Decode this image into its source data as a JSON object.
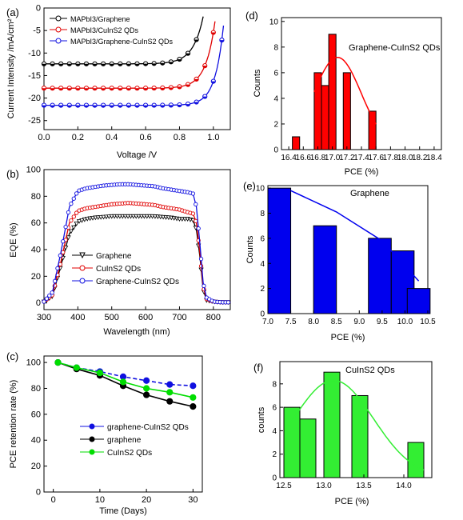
{
  "chart_data": [
    {
      "panel": "(a)",
      "type": "line",
      "xlabel": "Voltage /V",
      "ylabel": "Current Intensity /mA/cm²",
      "xlim": [
        0,
        1.1
      ],
      "ylim": [
        -27,
        0
      ],
      "xticks": [
        "0.0",
        "0.2",
        "0.4",
        "0.6",
        "0.8",
        "1.0"
      ],
      "yticks": [
        "0",
        "-5",
        "-10",
        "-15",
        "-20",
        "-25"
      ],
      "legend_position": "top-left",
      "series": [
        {
          "name": "MAPbI3/Graphene",
          "color": "#000000",
          "marker": "half-circle",
          "jsc": -12.4,
          "voc": 0.95,
          "n": 0.06
        },
        {
          "name": "MAPbI3/CuInS2 QDs",
          "color": "#e00000",
          "marker": "half-circle",
          "jsc": -17.8,
          "voc": 1.02,
          "n": 0.055
        },
        {
          "name": "MAPbI3/Graphene-CuInS2 QDs",
          "color": "#1010e0",
          "marker": "half-circle",
          "jsc": -21.6,
          "voc": 1.07,
          "n": 0.05
        }
      ]
    },
    {
      "panel": "(b)",
      "type": "line",
      "xlabel": "Wavelength (nm)",
      "ylabel": "EQE (%)",
      "xlim": [
        300,
        850
      ],
      "ylim": [
        -5,
        100
      ],
      "xticks": [
        "300",
        "400",
        "500",
        "600",
        "700",
        "800"
      ],
      "yticks": [
        "0",
        "20",
        "40",
        "60",
        "80",
        "100"
      ],
      "legend_position": "bottom-left",
      "x": [
        300,
        325,
        350,
        375,
        400,
        425,
        450,
        475,
        500,
        525,
        550,
        575,
        600,
        625,
        650,
        675,
        700,
        725,
        740,
        750,
        760,
        770,
        780,
        800,
        825,
        850
      ],
      "series": [
        {
          "name": "Graphene",
          "color": "#000000",
          "marker": "triangle-down",
          "values": [
            1,
            5,
            28,
            52,
            61,
            63,
            64,
            64.5,
            65,
            65,
            65,
            65,
            65,
            65,
            64.5,
            64,
            63,
            63,
            62,
            55,
            35,
            10,
            2,
            1,
            0.5,
            0.5
          ]
        },
        {
          "name": "CuInS2 QDs",
          "color": "#e00000",
          "marker": "circle",
          "values": [
            1,
            6,
            31,
            60,
            69,
            71,
            72,
            73,
            74,
            74.5,
            75,
            74.5,
            74,
            73.5,
            72,
            71,
            70,
            68,
            67,
            60,
            38,
            12,
            3,
            1,
            0.5,
            0.5
          ]
        },
        {
          "name": "Graphene-CuInS2 QDs",
          "color": "#1010e0",
          "marker": "circle",
          "values": [
            1,
            8,
            38,
            72,
            84,
            86,
            87,
            88,
            88.5,
            89,
            89,
            88.5,
            88,
            87.5,
            86,
            85,
            84,
            83,
            82,
            72,
            45,
            15,
            4,
            1,
            0.5,
            0.5
          ]
        }
      ]
    },
    {
      "panel": "(c)",
      "type": "line",
      "xlabel": "Time (Days)",
      "ylabel": "PCE retention rate (%)",
      "xlim": [
        -2,
        32
      ],
      "ylim": [
        0,
        105
      ],
      "xticks": [
        "0",
        "10",
        "20",
        "30"
      ],
      "yticks": [
        "0",
        "20",
        "40",
        "60",
        "80",
        "100"
      ],
      "legend_position": "bottom-right",
      "x": [
        1,
        5,
        10,
        15,
        20,
        25,
        30
      ],
      "series": [
        {
          "name": "graphene-CuInS2 QDs",
          "color": "#1010e0",
          "marker": "circle",
          "values": [
            100,
            96,
            93,
            89,
            86,
            83,
            82
          ]
        },
        {
          "name": "graphene",
          "color": "#000000",
          "marker": "circle",
          "values": [
            100,
            95,
            90,
            82,
            75,
            70,
            66
          ]
        },
        {
          "name": "CuInS2 QDs",
          "color": "#00dd00",
          "marker": "circle",
          "values": [
            100,
            96,
            92,
            85,
            80,
            77,
            73
          ]
        }
      ]
    },
    {
      "panel": "(d)",
      "type": "bar",
      "title": "Graphene-CuInS2 QDs",
      "xlabel": "PCE (%)",
      "ylabel": "Counts",
      "xlim": [
        16.3,
        18.5
      ],
      "ylim": [
        0,
        10.3
      ],
      "xticks": [
        "16.4",
        "16.6",
        "16.8",
        "17.0",
        "17.2",
        "17.4",
        "17.6",
        "17.8",
        "18.0",
        "18.2",
        "18.4"
      ],
      "yticks": [
        "0",
        "2",
        "4",
        "6",
        "8",
        "10"
      ],
      "bar_color": "#ff0000",
      "fit_color": "#ff0000",
      "bars": [
        {
          "x": 16.5,
          "value": 1
        },
        {
          "x": 16.8,
          "value": 6
        },
        {
          "x": 16.9,
          "value": 5
        },
        {
          "x": 17.0,
          "value": 9
        },
        {
          "x": 17.2,
          "value": 6
        },
        {
          "x": 17.55,
          "value": 3
        }
      ],
      "bar_width": 0.1,
      "fit": {
        "type": "gaussian",
        "mu": 17.07,
        "sigma": 0.33,
        "amp": 7.2,
        "from": 16.75,
        "to": 17.6
      }
    },
    {
      "panel": "(e)",
      "type": "bar",
      "title": "Graphene",
      "xlabel": "PCE (%)",
      "ylabel": "Counts",
      "xlim": [
        7.0,
        10.5
      ],
      "ylim": [
        0,
        10.2
      ],
      "xticks": [
        "7.0",
        "7.5",
        "8.0",
        "8.5",
        "9.0",
        "9.5",
        "10.0",
        "10.5"
      ],
      "yticks": [
        "0",
        "2",
        "4",
        "6",
        "8",
        "10"
      ],
      "bar_color": "#0000ee",
      "fit_color": "#0000ee",
      "bars": [
        {
          "x": 7.25,
          "value": 10
        },
        {
          "x": 8.25,
          "value": 7
        },
        {
          "x": 9.45,
          "value": 6
        },
        {
          "x": 9.95,
          "value": 5
        },
        {
          "x": 10.3,
          "value": 2
        }
      ],
      "bar_width": 0.5,
      "fit": {
        "type": "line",
        "points": [
          [
            7.5,
            9.8
          ],
          [
            8.5,
            8.1
          ],
          [
            9.5,
            5.8
          ],
          [
            10.3,
            2.6
          ]
        ]
      }
    },
    {
      "panel": "(f)",
      "type": "bar",
      "title": "CuInS2 QDs",
      "xlabel": "PCE (%)",
      "ylabel": "counts",
      "xlim": [
        12.45,
        14.35
      ],
      "ylim": [
        0,
        9.9
      ],
      "xticks": [
        "12.5",
        "13.0",
        "13.5",
        "14.0"
      ],
      "yticks": [
        "0",
        "2",
        "4",
        "6",
        "8"
      ],
      "bar_color": "#33ee33",
      "fit_color": "#33ee33",
      "bars": [
        {
          "x": 12.6,
          "value": 6
        },
        {
          "x": 12.8,
          "value": 5
        },
        {
          "x": 13.1,
          "value": 9
        },
        {
          "x": 13.45,
          "value": 7
        },
        {
          "x": 14.15,
          "value": 3
        }
      ],
      "bar_width": 0.2,
      "fit": {
        "type": "gaussian",
        "mu": 13.12,
        "sigma": 0.5,
        "amp": 8.3,
        "from": 12.55,
        "to": 14.25
      }
    }
  ]
}
